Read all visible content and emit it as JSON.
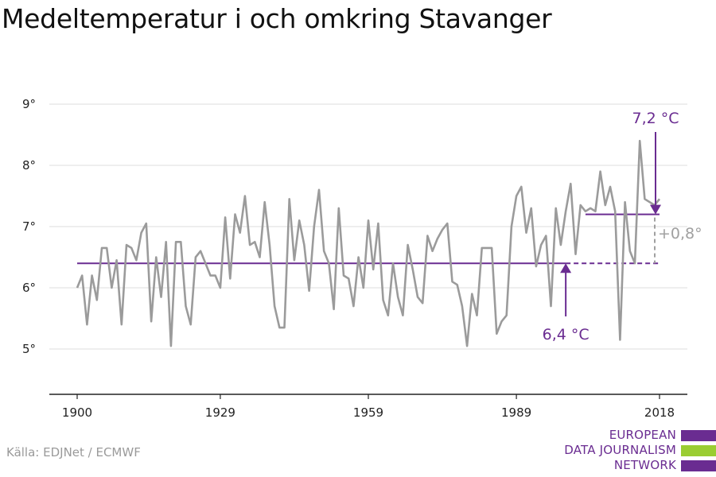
{
  "title": "Medeltemperatur i och omkring Stavanger",
  "source": "Källa: EDJNet / ECMWF",
  "logo": {
    "lines": [
      "EUROPEAN",
      "DATA JOURNALISM",
      "NETWORK"
    ],
    "colors": [
      "#6a2c91",
      "#9acd32",
      "#6a2c91"
    ]
  },
  "colors": {
    "line": "#9b9b9b",
    "accent": "#6a2c91",
    "grid": "#dcdcdc",
    "muted": "#a0a0a0"
  },
  "chart_data": {
    "type": "line",
    "title": "Medeltemperatur i och omkring Stavanger",
    "xlabel": "",
    "ylabel": "",
    "xlim": [
      1900,
      2018
    ],
    "ylim": [
      4.3,
      9.0
    ],
    "x_ticks": [
      "1900",
      "1929",
      "1959",
      "1989",
      "2018"
    ],
    "y_ticks": [
      "9°",
      "8°",
      "7°",
      "6°",
      "5°"
    ],
    "grid": true,
    "series": [
      {
        "x_start": 1900,
        "values": [
          6.0,
          6.2,
          5.4,
          6.2,
          5.8,
          6.65,
          6.65,
          6.0,
          6.45,
          5.4,
          6.7,
          6.65,
          6.45,
          6.9,
          7.05,
          5.45,
          6.5,
          5.85,
          6.75,
          5.05,
          6.75,
          6.75,
          5.7,
          5.4,
          6.5,
          6.6,
          6.4,
          6.2,
          6.2,
          6.0,
          7.15,
          6.15,
          7.2,
          6.9,
          7.5,
          6.7,
          6.75,
          6.5,
          7.4,
          6.7,
          5.7,
          5.35,
          5.35,
          7.45,
          6.45,
          7.1,
          6.7,
          5.95,
          7.0,
          7.6,
          6.6,
          6.4,
          5.65,
          7.3,
          6.2,
          6.15,
          5.7,
          6.5,
          6.0,
          7.1,
          6.3,
          7.05,
          5.8,
          5.55,
          6.4,
          5.85,
          5.55,
          6.7,
          6.3,
          5.85,
          5.75,
          6.85,
          6.6,
          6.8,
          6.95,
          7.05,
          6.1,
          6.05,
          5.7,
          5.05,
          5.9,
          5.55,
          6.65,
          6.65,
          6.65,
          5.25,
          5.45,
          5.55,
          7.0,
          7.5,
          7.65,
          6.9,
          7.3,
          6.35,
          6.7,
          6.85,
          5.7,
          7.3,
          6.7,
          7.25,
          7.7,
          6.55,
          7.35,
          7.25,
          7.3,
          7.25,
          7.9,
          7.35,
          7.65,
          7.25,
          5.15,
          7.4,
          6.6,
          6.4,
          8.4,
          7.45,
          7.4,
          7.35,
          7.45
        ]
      }
    ],
    "reference_lines": [
      {
        "value": 6.4,
        "from": 1900,
        "to": 1999,
        "style": "solid"
      },
      {
        "value": 6.4,
        "from": 1999,
        "to": 2018,
        "style": "dashed"
      },
      {
        "value": 7.2,
        "from": 2003,
        "to": 2018,
        "style": "solid"
      }
    ],
    "annotations": {
      "baseline_label": "6,4 °C",
      "recent_label": "7,2 °C",
      "difference_label": "+0,8°"
    }
  }
}
